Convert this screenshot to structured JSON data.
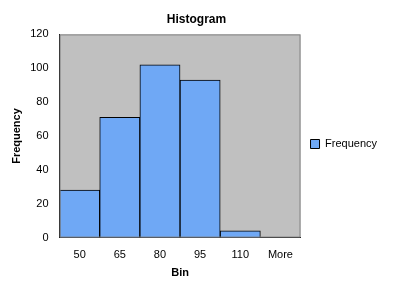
{
  "chart_data": {
    "type": "bar",
    "title": "Histogram",
    "x_label": "Bin",
    "y_label": "Frequency",
    "categories": [
      "50",
      "65",
      "80",
      "95",
      "110",
      "More"
    ],
    "series": [
      {
        "name": "Frequency",
        "color": "#6fa8f5",
        "values": [
          28,
          71,
          102,
          93,
          4,
          0
        ]
      }
    ],
    "ylim": [
      0,
      120
    ],
    "yticks": [
      0,
      20,
      40,
      60,
      80,
      100,
      120
    ],
    "grid": false,
    "legend": "right"
  }
}
